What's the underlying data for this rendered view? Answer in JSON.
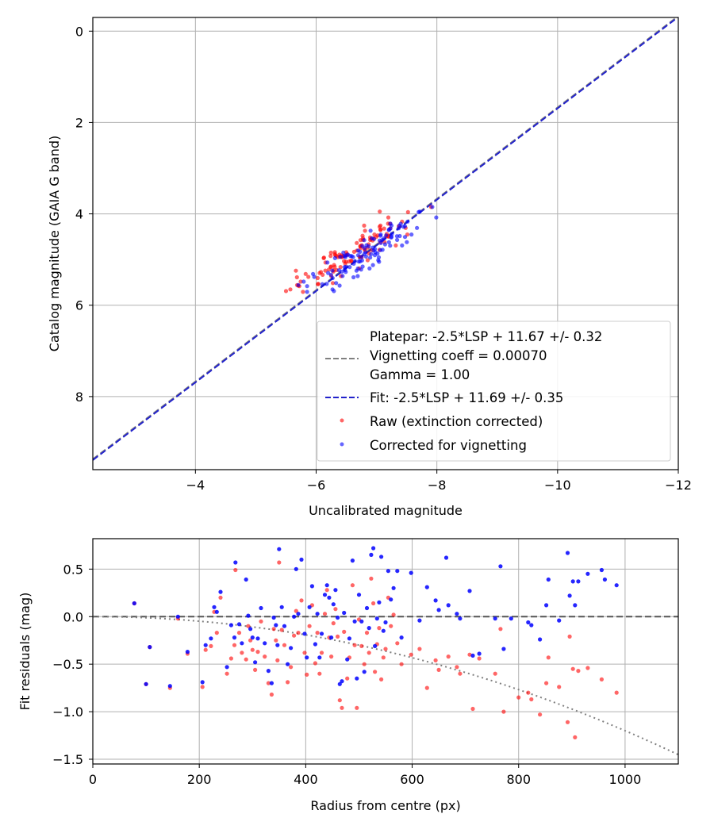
{
  "chart_data": [
    {
      "type": "scatter",
      "xlabel": "Uncalibrated magnitude",
      "ylabel": "Catalog magnitude (GAIA G band)",
      "xlim": [
        -2.3,
        -12
      ],
      "ylim": [
        9.6,
        -0.3
      ],
      "x_ticks": [
        -4,
        -6,
        -8,
        -10,
        -12
      ],
      "x_tick_labels": [
        "−4",
        "−6",
        "−8",
        "−10",
        "−12"
      ],
      "y_ticks": [
        0,
        2,
        4,
        6,
        8
      ],
      "y_tick_labels": [
        "0",
        "2",
        "4",
        "6",
        "8"
      ],
      "grid": true,
      "legend_position": "lower-right",
      "legend": [
        {
          "text": "Platepar: -2.5*LSP + 11.67 +/- 0.32",
          "kind": "text"
        },
        {
          "text": "Vignetting coeff = 0.00070",
          "kind": "gray-dash"
        },
        {
          "text": "Gamma = 1.00",
          "kind": "text"
        },
        {
          "text": "Fit: -2.5*LSP + 11.69 +/- 0.35",
          "kind": "blue-dash"
        },
        {
          "text": "Raw (extinction corrected)",
          "kind": "red-dot"
        },
        {
          "text": "Corrected for vignetting",
          "kind": "blue-dot"
        }
      ],
      "lines": [
        {
          "name": "Platepar",
          "slope": 1,
          "intercept": 11.67,
          "color": "#808080",
          "style": "dashed"
        },
        {
          "name": "Fit",
          "slope": 1,
          "intercept": 11.69,
          "color": "#2222cc",
          "style": "dashed"
        }
      ],
      "series": [
        {
          "name": "Raw (extinction corrected)",
          "color": "#ff0000",
          "opacity": 0.6,
          "points": []
        },
        {
          "name": "Corrected for vignetting",
          "color": "#0000ff",
          "opacity": 0.6,
          "points": []
        }
      ],
      "point_source": "derived from residual panel points: x = catalog - intercept - residual"
    },
    {
      "type": "scatter",
      "xlabel": "Radius from centre (px)",
      "ylabel": "Fit residuals (mag)",
      "xlim": [
        0,
        1100
      ],
      "ylim": [
        -1.55,
        0.82
      ],
      "x_ticks": [
        0,
        200,
        400,
        600,
        800,
        1000
      ],
      "x_tick_labels": [
        "0",
        "200",
        "400",
        "600",
        "800",
        "1000"
      ],
      "y_ticks": [
        0.5,
        0.0,
        -0.5,
        -1.0,
        -1.5
      ],
      "y_tick_labels": [
        "0.5",
        "0.0",
        "−0.5",
        "−1.0",
        "−1.5"
      ],
      "grid": true,
      "lines": [
        {
          "name": "zero",
          "type": "horizontal",
          "y": 0,
          "color": "#555555",
          "style": "dashed"
        },
        {
          "name": "vignetting model",
          "type": "quadratic",
          "a": -1.2e-06,
          "color": "#808080",
          "style": "dotted"
        }
      ],
      "series": [
        {
          "name": "Raw (extinction corrected)",
          "color": "#ff0000",
          "opacity": 0.6,
          "points": [
            [
              78,
              0.14
            ],
            [
              100,
              -0.71
            ],
            [
              107,
              -0.32
            ],
            [
              145,
              -0.75
            ],
            [
              160,
              -0.02
            ],
            [
              178,
              -0.39
            ],
            [
              206,
              -0.74
            ],
            [
              212,
              -0.35
            ],
            [
              222,
              -0.31
            ],
            [
              228,
              0.05
            ],
            [
              233,
              -0.17
            ],
            [
              240,
              0.2
            ],
            [
              252,
              -0.6
            ],
            [
              260,
              -0.44
            ],
            [
              266,
              -0.3
            ],
            [
              268,
              0.49
            ],
            [
              275,
              -0.17
            ],
            [
              280,
              -0.38
            ],
            [
              288,
              -0.45
            ],
            [
              292,
              -0.1
            ],
            [
              296,
              -0.25
            ],
            [
              300,
              -0.35
            ],
            [
              305,
              -0.56
            ],
            [
              310,
              -0.37
            ],
            [
              316,
              -0.05
            ],
            [
              323,
              -0.42
            ],
            [
              330,
              -0.7
            ],
            [
              336,
              -0.82
            ],
            [
              340,
              -0.13
            ],
            [
              344,
              -0.25
            ],
            [
              347,
              -0.46
            ],
            [
              350,
              0.57
            ],
            [
              355,
              -0.14
            ],
            [
              360,
              -0.3
            ],
            [
              366,
              -0.69
            ],
            [
              372,
              -0.53
            ],
            [
              378,
              -0.2
            ],
            [
              382,
              0.06
            ],
            [
              386,
              -0.17
            ],
            [
              392,
              0.17
            ],
            [
              398,
              -0.38
            ],
            [
              402,
              -0.61
            ],
            [
              407,
              -0.1
            ],
            [
              412,
              0.12
            ],
            [
              418,
              -0.49
            ],
            [
              422,
              -0.17
            ],
            [
              426,
              -0.6
            ],
            [
              430,
              -0.38
            ],
            [
              436,
              0.03
            ],
            [
              440,
              0.28
            ],
            [
              444,
              -0.22
            ],
            [
              448,
              -0.42
            ],
            [
              452,
              -0.07
            ],
            [
              456,
              0.08
            ],
            [
              460,
              -0.21
            ],
            [
              464,
              -0.88
            ],
            [
              468,
              -0.96
            ],
            [
              472,
              -0.16
            ],
            [
              478,
              -0.65
            ],
            [
              482,
              -0.43
            ],
            [
              488,
              0.33
            ],
            [
              492,
              -0.3
            ],
            [
              496,
              -0.96
            ],
            [
              500,
              -0.03
            ],
            [
              505,
              -0.31
            ],
            [
              510,
              -0.5
            ],
            [
              515,
              -0.17
            ],
            [
              519,
              -0.38
            ],
            [
              523,
              0.4
            ],
            [
              527,
              0.14
            ],
            [
              530,
              -0.58
            ],
            [
              534,
              -0.29
            ],
            [
              538,
              -0.12
            ],
            [
              542,
              -0.66
            ],
            [
              546,
              -0.43
            ],
            [
              550,
              -0.34
            ],
            [
              555,
              0.2
            ],
            [
              560,
              -0.1
            ],
            [
              565,
              0.02
            ],
            [
              572,
              -0.28
            ],
            [
              580,
              -0.5
            ],
            [
              598,
              -0.4
            ],
            [
              614,
              -0.34
            ],
            [
              628,
              -0.75
            ],
            [
              644,
              -0.46
            ],
            [
              650,
              -0.56
            ],
            [
              668,
              -0.42
            ],
            [
              684,
              -0.53
            ],
            [
              690,
              -0.6
            ],
            [
              708,
              -0.4
            ],
            [
              714,
              -0.97
            ],
            [
              726,
              -0.44
            ],
            [
              756,
              -0.6
            ],
            [
              766,
              -0.13
            ],
            [
              772,
              -1.0
            ],
            [
              800,
              -0.85
            ],
            [
              818,
              -0.8
            ],
            [
              824,
              -0.87
            ],
            [
              840,
              -1.03
            ],
            [
              852,
              -0.7
            ],
            [
              856,
              -0.43
            ],
            [
              876,
              -0.74
            ],
            [
              892,
              -1.11
            ],
            [
              896,
              -0.21
            ],
            [
              902,
              -0.55
            ],
            [
              906,
              -1.27
            ],
            [
              912,
              -0.57
            ],
            [
              930,
              -0.54
            ],
            [
              956,
              -0.66
            ],
            [
              984,
              -0.8
            ]
          ]
        },
        {
          "name": "Corrected for vignetting",
          "color": "#0000ff",
          "opacity": 0.85,
          "points": [
            [
              78,
              0.14
            ],
            [
              100,
              -0.71
            ],
            [
              107,
              -0.32
            ],
            [
              145,
              -0.73
            ],
            [
              160,
              0.0
            ],
            [
              178,
              -0.37
            ],
            [
              206,
              -0.69
            ],
            [
              212,
              -0.3
            ],
            [
              222,
              -0.23
            ],
            [
              228,
              0.1
            ],
            [
              233,
              0.05
            ],
            [
              240,
              0.26
            ],
            [
              252,
              -0.53
            ],
            [
              260,
              -0.09
            ],
            [
              266,
              -0.22
            ],
            [
              268,
              0.57
            ],
            [
              275,
              -0.08
            ],
            [
              280,
              -0.28
            ],
            [
              288,
              0.39
            ],
            [
              292,
              0.01
            ],
            [
              296,
              -0.13
            ],
            [
              300,
              -0.22
            ],
            [
              305,
              -0.48
            ],
            [
              310,
              -0.23
            ],
            [
              316,
              0.09
            ],
            [
              323,
              -0.28
            ],
            [
              330,
              -0.57
            ],
            [
              336,
              -0.7
            ],
            [
              340,
              -0.01
            ],
            [
              344,
              -0.09
            ],
            [
              347,
              -0.3
            ],
            [
              350,
              0.71
            ],
            [
              355,
              0.1
            ],
            [
              360,
              -0.1
            ],
            [
              366,
              -0.5
            ],
            [
              372,
              -0.33
            ],
            [
              378,
              0.0
            ],
            [
              382,
              0.5
            ],
            [
              386,
              0.03
            ],
            [
              392,
              0.6
            ],
            [
              398,
              -0.18
            ],
            [
              402,
              -0.43
            ],
            [
              407,
              0.1
            ],
            [
              412,
              0.32
            ],
            [
              418,
              -0.29
            ],
            [
              422,
              0.03
            ],
            [
              426,
              -0.43
            ],
            [
              430,
              -0.18
            ],
            [
              436,
              0.23
            ],
            [
              440,
              0.33
            ],
            [
              444,
              0.2
            ],
            [
              448,
              -0.22
            ],
            [
              452,
              0.13
            ],
            [
              456,
              0.28
            ],
            [
              460,
              -0.01
            ],
            [
              464,
              -0.71
            ],
            [
              468,
              -0.68
            ],
            [
              472,
              0.04
            ],
            [
              478,
              -0.45
            ],
            [
              482,
              -0.23
            ],
            [
              488,
              0.59
            ],
            [
              492,
              -0.05
            ],
            [
              496,
              -0.65
            ],
            [
              500,
              0.23
            ],
            [
              505,
              -0.05
            ],
            [
              510,
              -0.58
            ],
            [
              515,
              0.09
            ],
            [
              519,
              -0.12
            ],
            [
              523,
              0.65
            ],
            [
              527,
              0.72
            ],
            [
              530,
              -0.31
            ],
            [
              534,
              -0.02
            ],
            [
              538,
              0.15
            ],
            [
              542,
              0.63
            ],
            [
              546,
              -0.15
            ],
            [
              550,
              -0.06
            ],
            [
              555,
              0.48
            ],
            [
              560,
              0.18
            ],
            [
              565,
              0.3
            ],
            [
              572,
              0.48
            ],
            [
              580,
              -0.22
            ],
            [
              598,
              0.46
            ],
            [
              614,
              -0.04
            ],
            [
              628,
              0.31
            ],
            [
              644,
              0.17
            ],
            [
              650,
              0.07
            ],
            [
              664,
              0.62
            ],
            [
              668,
              0.12
            ],
            [
              684,
              0.03
            ],
            [
              690,
              -0.02
            ],
            [
              708,
              0.27
            ],
            [
              714,
              -0.41
            ],
            [
              726,
              -0.39
            ],
            [
              756,
              -0.02
            ],
            [
              766,
              0.53
            ],
            [
              772,
              -0.34
            ],
            [
              786,
              -0.02
            ],
            [
              818,
              -0.06
            ],
            [
              824,
              -0.09
            ],
            [
              840,
              -0.24
            ],
            [
              852,
              0.12
            ],
            [
              856,
              0.39
            ],
            [
              876,
              -0.04
            ],
            [
              892,
              0.67
            ],
            [
              896,
              0.22
            ],
            [
              902,
              0.37
            ],
            [
              906,
              0.12
            ],
            [
              912,
              0.37
            ],
            [
              930,
              0.45
            ],
            [
              956,
              0.49
            ],
            [
              962,
              0.39
            ],
            [
              984,
              0.33
            ]
          ]
        }
      ]
    }
  ]
}
